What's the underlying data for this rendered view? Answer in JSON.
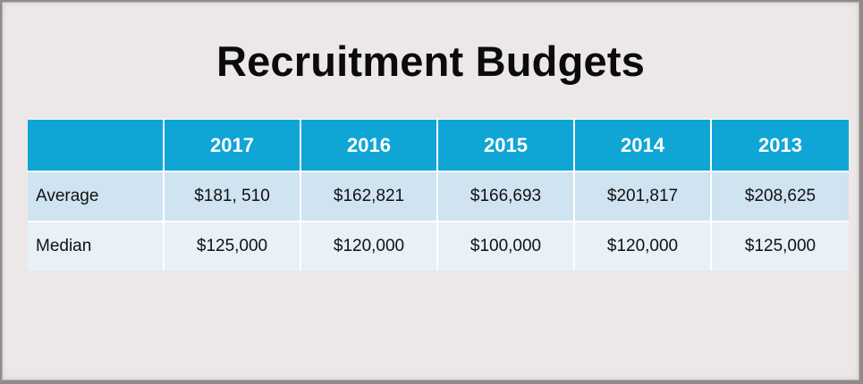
{
  "title": "Recruitment Budgets",
  "table": {
    "columns": [
      "",
      "2017",
      "2016",
      "2015",
      "2014",
      "2013"
    ],
    "rows": [
      {
        "label": "Average",
        "values": [
          "$181, 510",
          "$162,821",
          "$166,693",
          "$201,817",
          "$208,625"
        ]
      },
      {
        "label": "Median",
        "values": [
          "$125,000",
          "$120,000",
          "$100,000",
          "$120,000",
          "$125,000"
        ]
      }
    ]
  },
  "colors": {
    "header_background": "#0fa6d6",
    "row_1_background": "#cfe3f1",
    "row_2_background": "#e8f0f8",
    "slide_background": "#ece8e8"
  }
}
